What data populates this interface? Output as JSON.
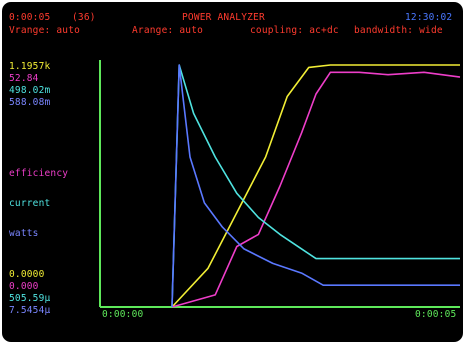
{
  "header": {
    "time": "0:00:05",
    "count": "(36)",
    "title": "POWER ANALYZER",
    "clock": "12:30:02",
    "vrange": "Vrange: auto",
    "arange": "Arange: auto",
    "coupling": "coupling: ac+dc",
    "bandwidth": "bandwidth: wide"
  },
  "max_values": {
    "yellow": "1.1957k",
    "magenta": "52.84",
    "cyan": "498.02m",
    "blue": "588.08m"
  },
  "legend": {
    "efficiency": "efficiency",
    "current": "current",
    "watts": "watts"
  },
  "min_values": {
    "yellow": "0.0000",
    "magenta": "0.000",
    "cyan": "505.59µ",
    "blue": "7.5454µ"
  },
  "x_axis": {
    "start": "0:00:00",
    "end": "0:00:05"
  },
  "colors": {
    "background": "#000000",
    "header_red": "#ff3b2e",
    "clock_blue": "#4a78ff",
    "axis_green": "#5ee85a",
    "trace_yellow": "#f2ee35",
    "trace_magenta": "#ee3ec9",
    "trace_cyan": "#4fe3e0",
    "trace_blue": "#5a78ff"
  },
  "chart_data": {
    "type": "line",
    "x_start": "0:00:00",
    "x_end": "0:00:05",
    "series": [
      {
        "color": "#f2ee35",
        "x": [
          1.0,
          1.5,
          1.9,
          2.3,
          2.6,
          2.9,
          3.2,
          5.0
        ],
        "y": [
          0.0,
          0.16,
          0.39,
          0.62,
          0.87,
          0.99,
          1.0,
          1.0
        ]
      },
      {
        "color": "#ee3ec9",
        "x": [
          1.0,
          1.6,
          1.9,
          2.2,
          2.5,
          2.8,
          3.0,
          3.2,
          3.6,
          4.0,
          4.5,
          5.0
        ],
        "y": [
          0.0,
          0.05,
          0.25,
          0.3,
          0.5,
          0.72,
          0.88,
          0.97,
          0.97,
          0.96,
          0.97,
          0.95
        ]
      },
      {
        "color": "#4fe3e0",
        "x": [
          1.0,
          1.1,
          1.2,
          1.3,
          1.6,
          1.9,
          2.2,
          2.5,
          2.8,
          3.0,
          5.0
        ],
        "y": [
          0.0,
          1.0,
          0.9,
          0.8,
          0.62,
          0.47,
          0.37,
          0.3,
          0.24,
          0.2,
          0.2
        ]
      },
      {
        "color": "#5a78ff",
        "x": [
          1.0,
          1.1,
          1.25,
          1.45,
          1.7,
          2.0,
          2.4,
          2.8,
          3.1,
          5.0
        ],
        "y": [
          0.0,
          1.0,
          0.62,
          0.43,
          0.33,
          0.24,
          0.18,
          0.14,
          0.09,
          0.09
        ]
      }
    ]
  }
}
